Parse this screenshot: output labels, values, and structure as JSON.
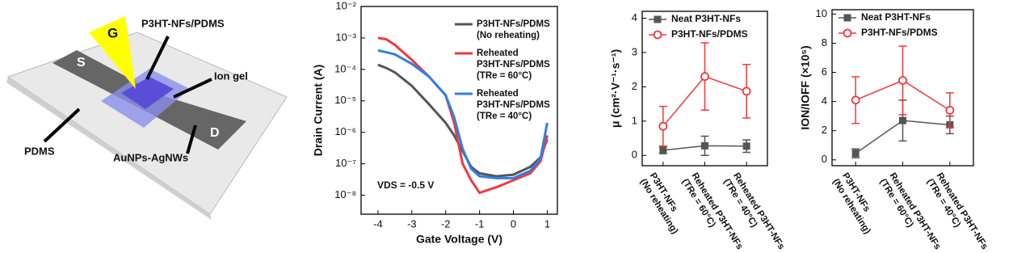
{
  "diagram": {
    "labels": {
      "gate": "G",
      "channel": "P3HT-NFs/PDMS",
      "source": "S",
      "ion_gel": "Ion gel",
      "drain": "D",
      "substrate": "PDMS",
      "electrode": "AuNPs-AgNWs"
    }
  },
  "chart_data": [
    {
      "type": "line",
      "x_label": "Gate Voltage (V)",
      "y_label": "Drain Current (A)",
      "annotation": "VDS = -0.5 V",
      "log_y": true,
      "x": [
        -4,
        -3.75,
        -3.5,
        -3,
        -2.5,
        -2,
        -1.75,
        -1.5,
        -1.25,
        -1,
        -0.5,
        0,
        0.5,
        0.8,
        1
      ],
      "series": [
        {
          "name": "P3HT-NFs/PDMS\n(No reheating)",
          "color": "#555555",
          "values": [
            0.00014,
            0.00011,
            8e-05,
            3e-05,
            8e-06,
            2e-06,
            8e-07,
            2.5e-07,
            8e-08,
            5e-08,
            4e-08,
            4.5e-08,
            8e-08,
            1.6e-07,
            6e-07
          ]
        },
        {
          "name": "Reheated\nP3HT-NFs/PDMS\n(TRe = 60°C)",
          "color": "#f0393f",
          "values": [
            0.001,
            0.0009,
            0.0006,
            0.0002,
            6e-05,
            1.5e-05,
            2e-06,
            1e-07,
            3e-08,
            1.2e-08,
            1.8e-08,
            3e-08,
            5e-08,
            1.2e-07,
            8e-07
          ]
        },
        {
          "name": "Reheated\nP3HT-NFs/PDMS\n(TRe = 40°C)",
          "color": "#2f7fe6",
          "values": [
            0.0004,
            0.00035,
            0.0003,
            0.00015,
            6e-05,
            1.5e-05,
            3e-06,
            3e-07,
            7e-08,
            4e-08,
            3.5e-08,
            3.5e-08,
            6e-08,
            1.5e-07,
            2e-06
          ]
        }
      ],
      "xlim": [
        -4.5,
        1.3
      ],
      "xticks": [
        -4,
        -3,
        -2,
        -1,
        0,
        1
      ],
      "ylim": [
        2.5e-09,
        0.01
      ],
      "yticks": [
        {
          "value": 0.01,
          "label": "10⁻²"
        },
        {
          "value": 0.001,
          "label": "10⁻³"
        },
        {
          "value": 0.0001,
          "label": "10⁻⁴"
        },
        {
          "value": 1e-05,
          "label": "10⁻⁵"
        },
        {
          "value": 1e-06,
          "label": "10⁻⁶"
        },
        {
          "value": 1e-07,
          "label": "10⁻⁷"
        },
        {
          "value": 1e-08,
          "label": "10⁻⁸"
        }
      ]
    },
    {
      "type": "errorline",
      "y_label": "μ (cm²·V⁻¹·s⁻¹)",
      "categories": [
        "P3HT-NFs\n(No reheating)",
        "Reheated P3HT-NFs\n(TRe = 60°C)",
        "Reheated P3HT-NFs\n(TRe = 40°C)"
      ],
      "series": [
        {
          "name": "Neat P3HT-NFs",
          "color": "#555555",
          "marker": "square",
          "values": [
            0.15,
            0.28,
            0.27
          ],
          "errors": [
            0.1,
            0.28,
            0.18
          ]
        },
        {
          "name": "P3HT-NFs/PDMS",
          "color": "#f0393f",
          "marker": "circle",
          "values": [
            0.85,
            2.3,
            1.87
          ],
          "errors": [
            0.58,
            0.98,
            0.78
          ]
        }
      ],
      "ylim": [
        -0.3,
        4.2
      ],
      "yticks": [
        0,
        1,
        2,
        3,
        4
      ]
    },
    {
      "type": "errorline",
      "y_label": "ION/IOFF (×10⁵)",
      "categories": [
        "P3HT-NFs\n(No reheating)",
        "Reheated P3HT-NFs\n(TRe = 60°C)",
        "Reheated P3HT-NFs\n(TRe = 40°C)"
      ],
      "series": [
        {
          "name": "Neat P3HT-NFs",
          "color": "#555555",
          "marker": "square",
          "values": [
            0.45,
            2.7,
            2.4
          ],
          "errors": [
            0.3,
            1.4,
            0.6
          ]
        },
        {
          "name": "P3HT-NFs/PDMS",
          "color": "#f0393f",
          "marker": "circle",
          "values": [
            4.1,
            5.45,
            3.4
          ],
          "errors": [
            1.6,
            2.35,
            1.2
          ]
        }
      ],
      "ylim": [
        -0.4,
        10.3
      ],
      "yticks": [
        0,
        2,
        4,
        6,
        8,
        10
      ]
    }
  ]
}
